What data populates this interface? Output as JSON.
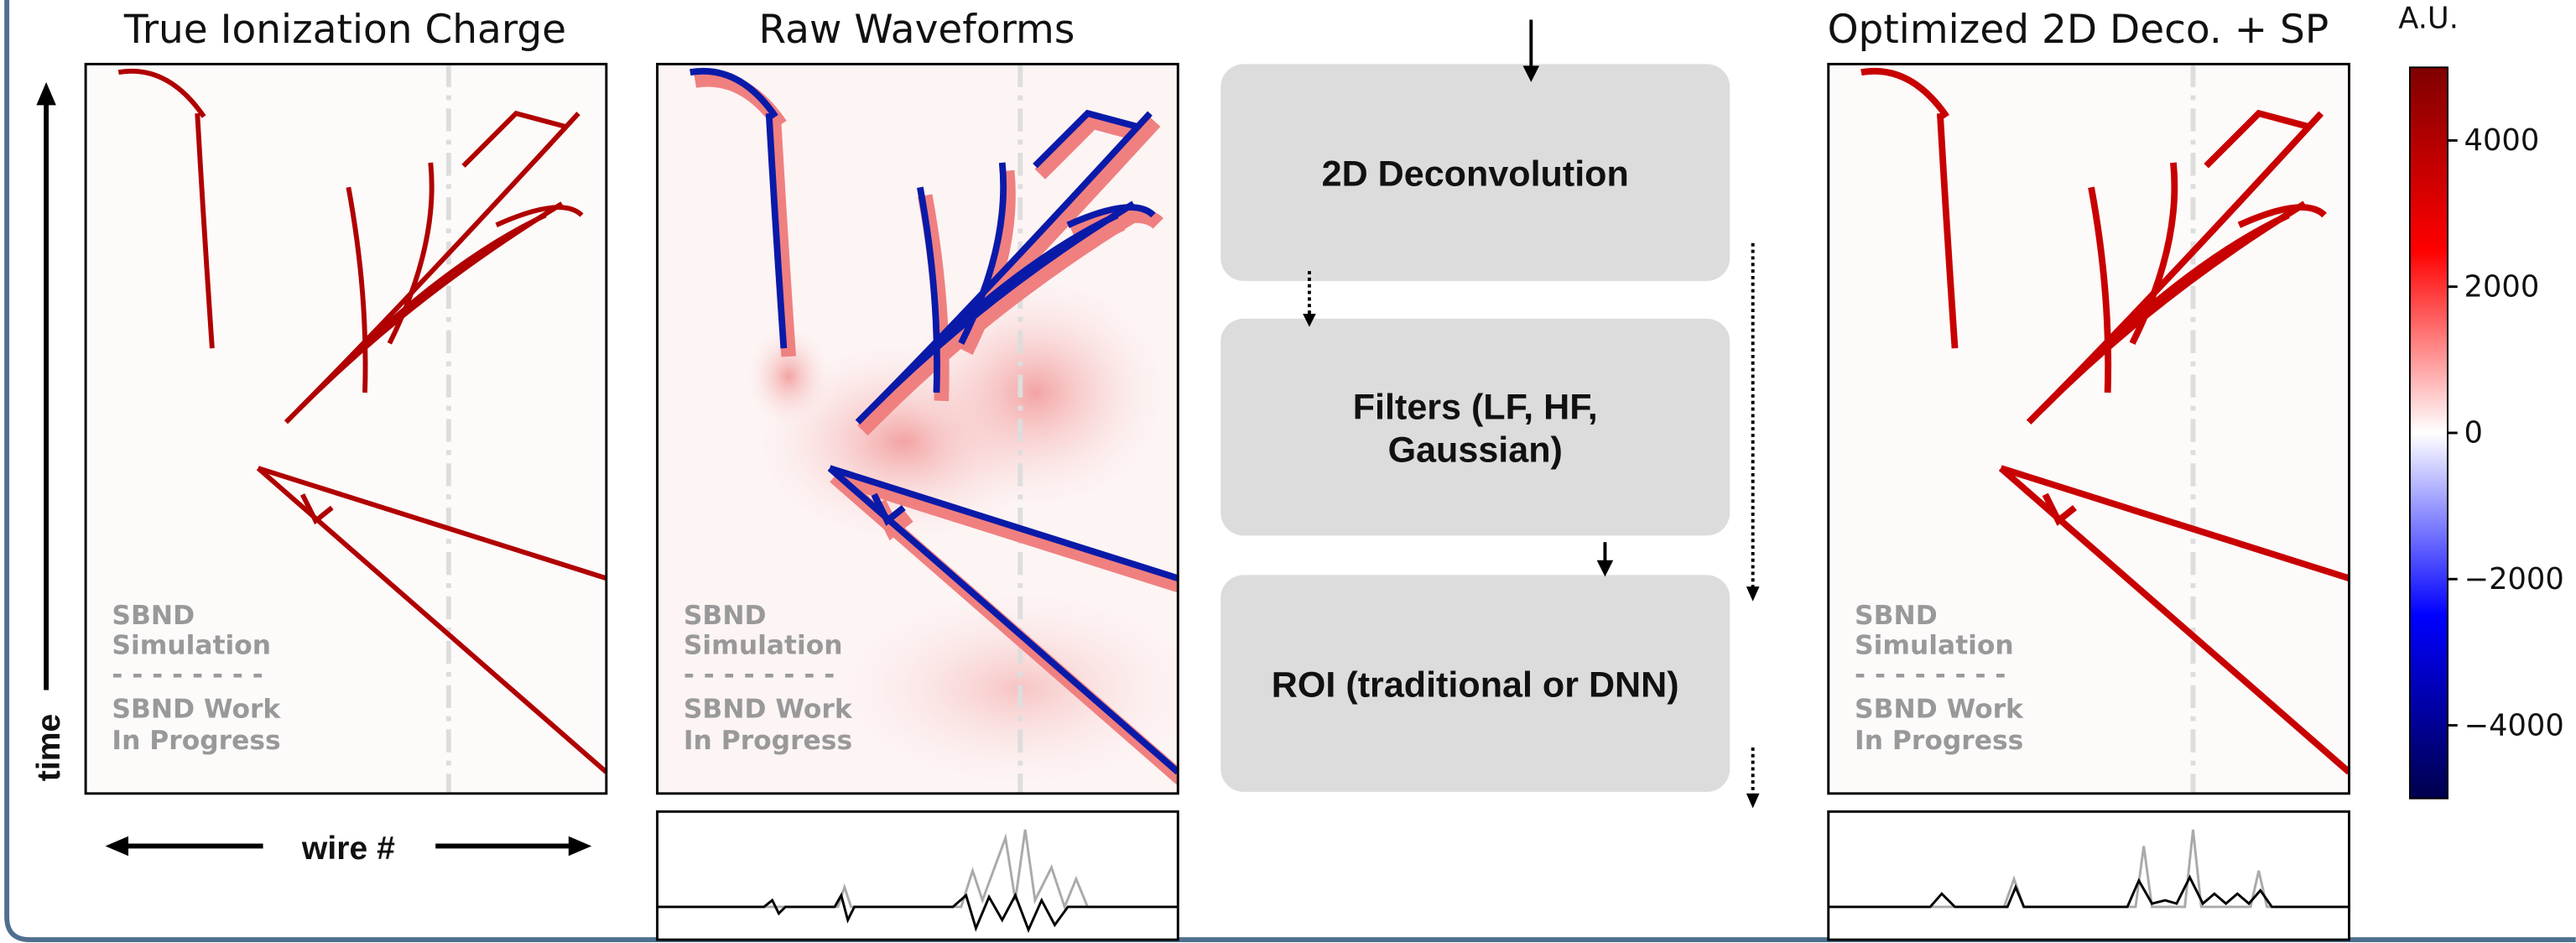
{
  "panels": [
    {
      "title": "True Ionization Charge"
    },
    {
      "title": "Raw Waveforms"
    },
    {
      "title": "Optimized 2D Deco. + SP"
    }
  ],
  "watermark": [
    "SBND",
    "Simulation",
    "- - - - - - - -",
    "SBND Work",
    "In Progress"
  ],
  "axes": {
    "y_label": "time",
    "x_label": "wire #"
  },
  "flow": {
    "steps": [
      {
        "lines": [
          "2D Deconvolution"
        ]
      },
      {
        "lines": [
          "Filters (LF, HF,",
          "Gaussian)"
        ]
      },
      {
        "lines": [
          "ROI (traditional or DNN)"
        ]
      }
    ]
  },
  "colorbar": {
    "label": "A.U.",
    "lim": [
      -5000,
      5000
    ],
    "ticks": [
      4000,
      2000,
      0,
      {
        "value": -2000,
        "label": "−2000"
      },
      {
        "value": -4000,
        "label": "−4000"
      }
    ]
  }
}
